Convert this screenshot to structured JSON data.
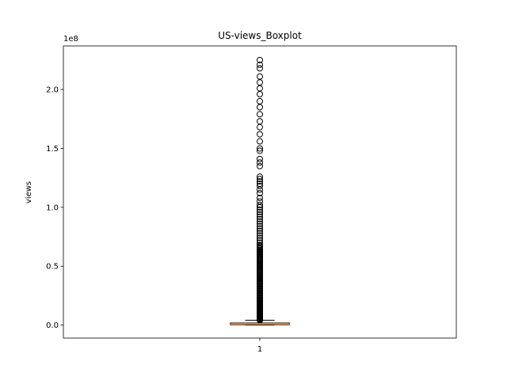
{
  "chart_data": {
    "type": "box",
    "title": "US-views_Boxplot",
    "xlabel": "",
    "ylabel": "views",
    "y_offset_text": "1e8",
    "x_ticks": [
      "1"
    ],
    "y_ticks": [
      {
        "value": 0.0,
        "label": "0.0"
      },
      {
        "value": 0.5,
        "label": "0.5"
      },
      {
        "value": 1.0,
        "label": "1.0"
      },
      {
        "value": 1.5,
        "label": "1.5"
      },
      {
        "value": 2.0,
        "label": "2.0"
      }
    ],
    "ylim": [
      -0.11,
      2.37
    ],
    "xlim": [
      0.5,
      1.5
    ],
    "grid": false,
    "colors": {
      "box": "#000000",
      "median": "#ff7f0e",
      "flier": "#000000"
    },
    "box": {
      "x": 1,
      "whisker_low": 0.0,
      "q1": 0.0024,
      "median": 0.0068,
      "q3": 0.0178,
      "whisker_high": 0.041,
      "outliers": [
        0.042,
        0.045,
        0.048,
        0.051,
        0.054,
        0.057,
        0.06,
        0.063,
        0.066,
        0.069,
        0.072,
        0.075,
        0.078,
        0.081,
        0.085,
        0.09,
        0.095,
        0.1,
        0.105,
        0.11,
        0.115,
        0.12,
        0.125,
        0.13,
        0.135,
        0.14,
        0.145,
        0.15,
        0.155,
        0.16,
        0.165,
        0.17,
        0.175,
        0.18,
        0.185,
        0.19,
        0.2,
        0.21,
        0.22,
        0.23,
        0.24,
        0.25,
        0.26,
        0.27,
        0.28,
        0.29,
        0.3,
        0.31,
        0.32,
        0.33,
        0.34,
        0.35,
        0.36,
        0.37,
        0.38,
        0.39,
        0.4,
        0.41,
        0.42,
        0.43,
        0.44,
        0.45,
        0.46,
        0.47,
        0.48,
        0.49,
        0.5,
        0.51,
        0.52,
        0.53,
        0.54,
        0.55,
        0.56,
        0.57,
        0.58,
        0.59,
        0.6,
        0.61,
        0.62,
        0.63,
        0.64,
        0.65,
        0.66,
        0.67,
        0.68,
        0.7,
        0.72,
        0.74,
        0.76,
        0.78,
        0.8,
        0.82,
        0.84,
        0.86,
        0.88,
        0.9,
        0.92,
        0.94,
        0.96,
        0.98,
        1.0,
        1.02,
        1.05,
        1.08,
        1.12,
        1.15,
        1.18,
        1.2,
        1.22,
        1.24,
        1.26,
        1.35,
        1.38,
        1.41,
        1.48,
        1.5,
        1.56,
        1.62,
        1.68,
        1.73,
        1.79,
        1.85,
        1.9,
        1.96,
        2.01,
        2.06,
        2.11,
        2.18,
        2.21,
        2.25
      ]
    }
  }
}
